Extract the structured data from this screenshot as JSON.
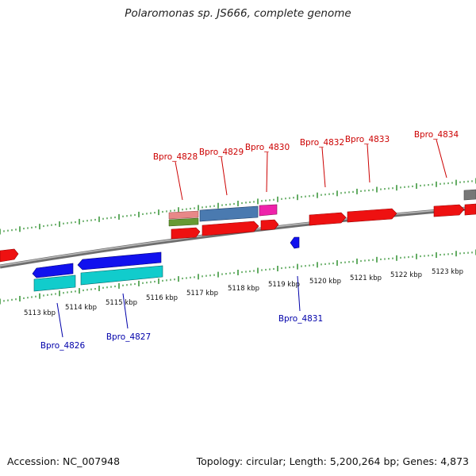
{
  "title": "Polaromonas sp. JS666, complete genome",
  "accession": "Accession: NC_007948",
  "topology": "Topology: circular; Length: 5,200,264 bp; Genes: 4,873",
  "kbp_labels": [
    "5113 kbp",
    "5114 kbp",
    "5115 kbp",
    "5116 kbp",
    "5117 kbp",
    "5118 kbp",
    "5119 kbp",
    "5120 kbp",
    "5121 kbp",
    "5122 kbp",
    "5123 kbp"
  ],
  "top_labels": [
    "Bpro_4828",
    "Bpro_4829",
    "Bpro_4830",
    "Bpro_4832",
    "Bpro_4833",
    "Bpro_4834"
  ],
  "bottom_labels": [
    "Bpro_4826",
    "Bpro_4827",
    "Bpro_4831"
  ],
  "colors": {
    "forward_label": "#cc0000",
    "reverse_label": "#0000aa",
    "cds_forward": "#ee1111",
    "cds_reverse": "#1111ee",
    "rna_reverse": "#11cccc",
    "tick": "#228822",
    "backbone": "#808080",
    "feature_pink": "#e88888",
    "feature_olive": "#669933",
    "feature_steel": "#4a7ab0",
    "feature_magenta": "#ee22aa",
    "feature_gray": "#777777"
  }
}
